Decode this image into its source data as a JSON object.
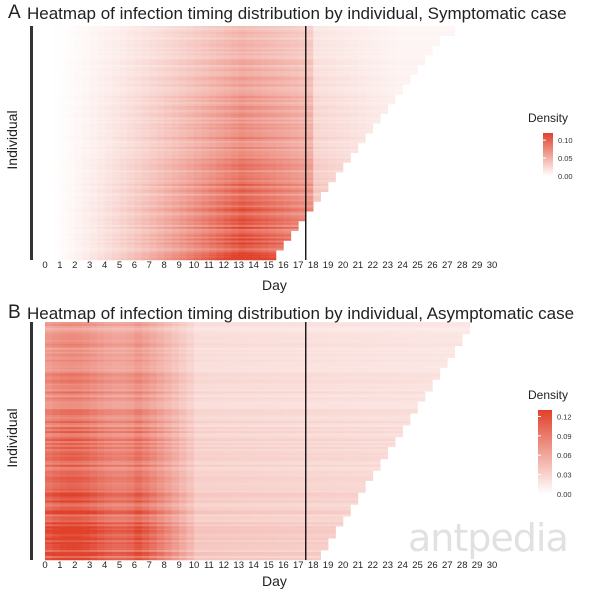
{
  "chart_data": [
    {
      "type": "heatmap",
      "panel_letter": "A",
      "title": "Heatmap of infection timing distribution by individual, Symptomatic case",
      "xlabel": "Day",
      "ylabel": "Individual",
      "x_ticks": [
        0,
        1,
        2,
        3,
        4,
        5,
        6,
        7,
        8,
        9,
        10,
        11,
        12,
        13,
        14,
        15,
        16,
        17,
        18,
        19,
        20,
        21,
        22,
        23,
        24,
        25,
        26,
        27,
        28,
        29,
        30
      ],
      "xlim": [
        0,
        30
      ],
      "vline_day": 17.5,
      "legend": {
        "title": "Density",
        "ticks": [
          "0.10",
          "0.05",
          "0.00"
        ],
        "max": 0.12,
        "placement": "right"
      },
      "row_end_days_top_to_bottom": [
        27.5,
        26.5,
        26,
        25.5,
        25,
        24.5,
        24,
        23.5,
        23,
        22.5,
        22,
        21.5,
        21,
        20.5,
        20,
        19.5,
        19,
        18.5,
        18,
        17.5,
        17,
        16.5,
        16,
        15.5
      ],
      "density_profile": "density increases from near 0 at day 0 toward the row's end; late-ending individuals have highest density around days 9-15",
      "colors": {
        "low": "#ffffff",
        "high": "#e0412b"
      }
    },
    {
      "type": "heatmap",
      "panel_letter": "B",
      "title": "Heatmap of infection timing distribution by individual, Asymptomatic case",
      "xlabel": "Day",
      "ylabel": "Individual",
      "x_ticks": [
        0,
        1,
        2,
        3,
        4,
        5,
        6,
        7,
        8,
        9,
        10,
        11,
        12,
        13,
        14,
        15,
        16,
        17,
        18,
        19,
        20,
        21,
        22,
        23,
        24,
        25,
        26,
        27,
        28,
        29,
        30
      ],
      "xlim": [
        0,
        30
      ],
      "vline_day": 17.5,
      "legend": {
        "title": "Density",
        "ticks": [
          "0.12",
          "0.09",
          "0.06",
          "0.03",
          "0.00"
        ],
        "max": 0.13,
        "placement": "right"
      },
      "row_end_days_top_to_bottom": [
        28.5,
        28,
        27.5,
        27,
        26.5,
        26,
        25.5,
        25,
        24.5,
        24,
        23.5,
        23,
        22.5,
        22,
        21.5,
        21,
        20.5,
        20,
        19.5,
        19,
        18.5
      ],
      "density_profile": "highest density in days 0-6, then fading; fairly uniform low density after day 10",
      "colors": {
        "low": "#ffffff",
        "high": "#e0412b"
      }
    }
  ],
  "watermark": "antpedia"
}
